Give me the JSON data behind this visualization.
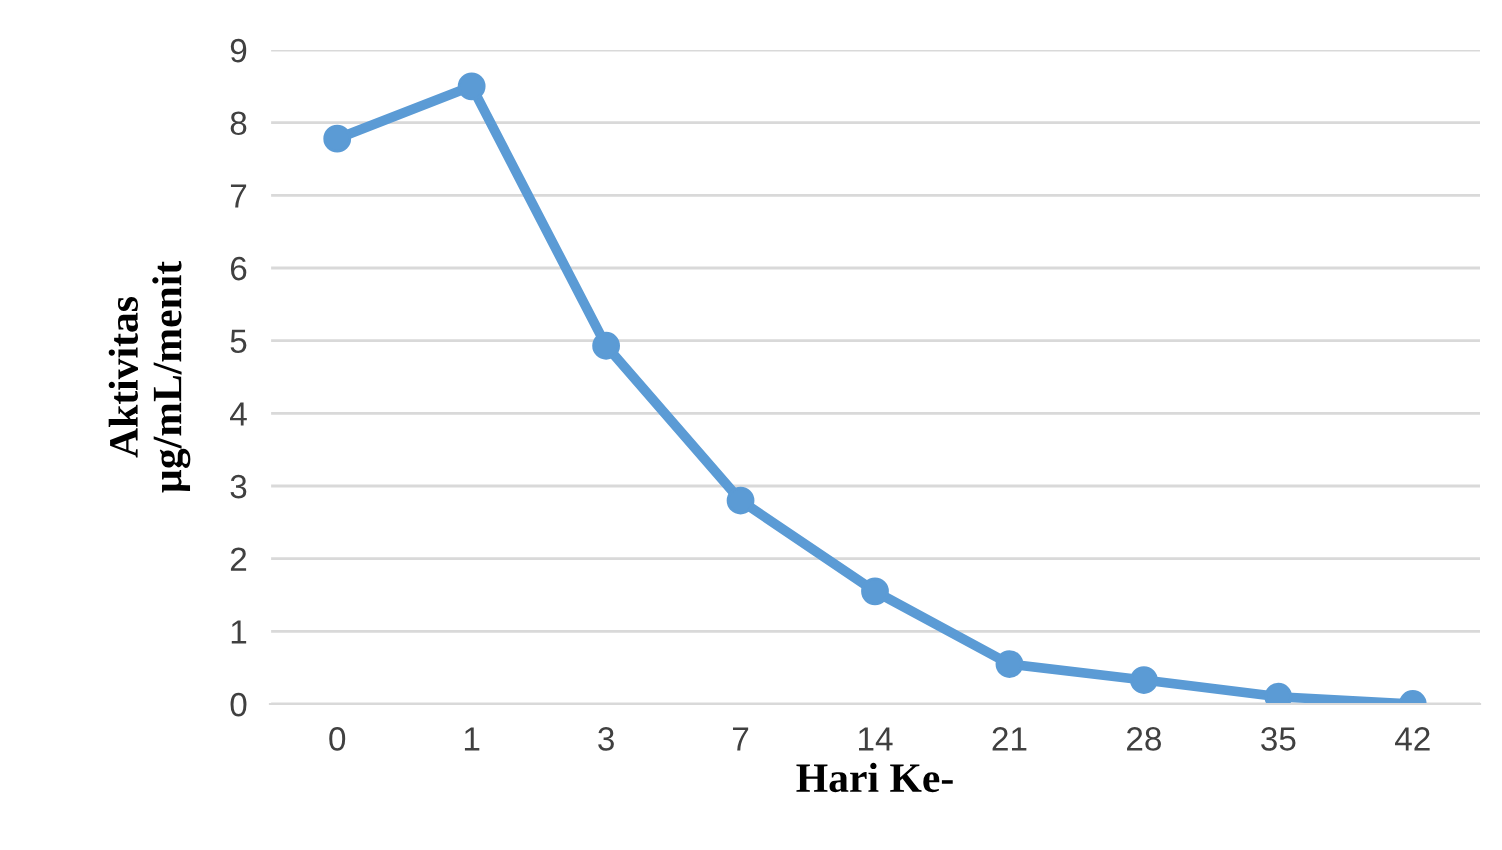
{
  "chart_data": {
    "type": "line",
    "categories": [
      "0",
      "1",
      "3",
      "7",
      "14",
      "21",
      "28",
      "35",
      "42"
    ],
    "series": [
      {
        "color": "#5b9bd5",
        "values": [
          7.78,
          8.5,
          4.93,
          2.8,
          1.55,
          0.55,
          0.33,
          0.1,
          0.0
        ]
      }
    ],
    "xlabel": "Hari Ke-",
    "ylabel": "Aktivitas\nµg/mL/menit",
    "ylim": [
      0,
      9
    ],
    "yticks": [
      0,
      1,
      2,
      3,
      4,
      5,
      6,
      7,
      8,
      9
    ],
    "grid": "y",
    "marker": "circle",
    "line_style": "solid",
    "legend": false
  }
}
